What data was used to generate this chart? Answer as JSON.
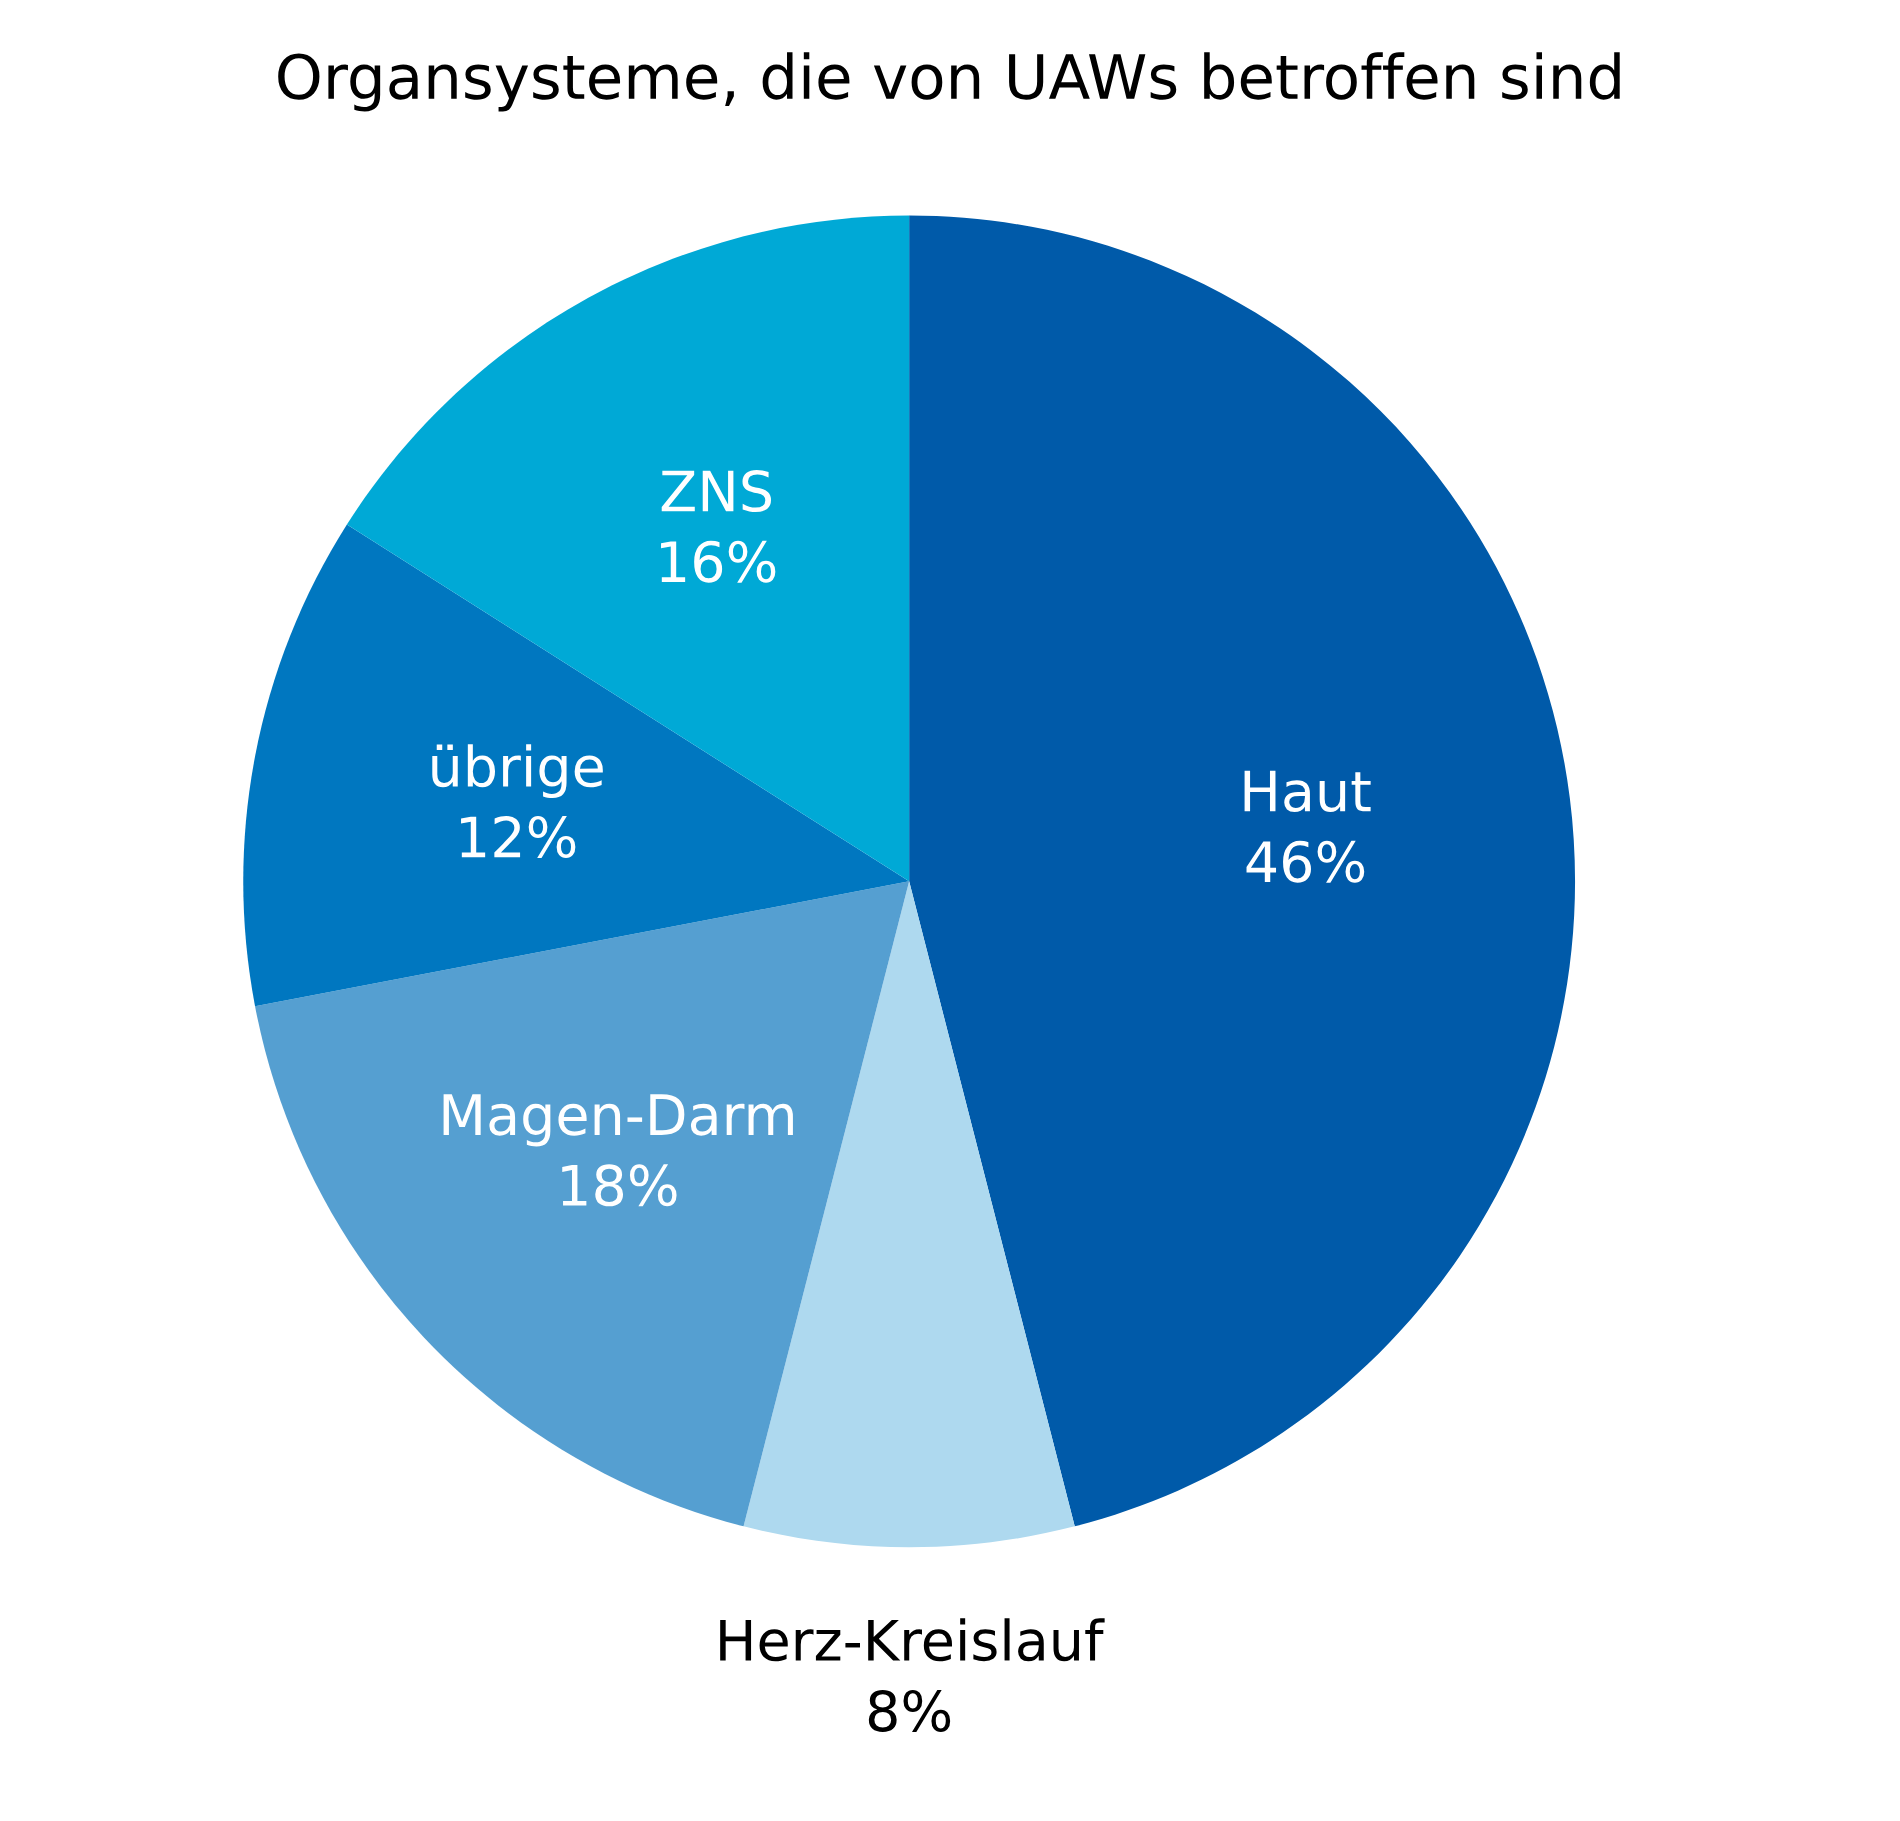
{
  "chart_data": {
    "type": "pie",
    "title": "Organsysteme, die von UAWs betroffen sind",
    "categories": [
      "Haut",
      "Herz-Kreislauf",
      "Magen-Darm",
      "übrige",
      "ZNS"
    ],
    "values": [
      46,
      8,
      18,
      12,
      16
    ],
    "value_labels": [
      "46%",
      "8%",
      "18%",
      "12%",
      "16%"
    ],
    "colors": [
      "#005aa9",
      "#aed9ef",
      "#559fd1",
      "#0077c0",
      "#00a9d6"
    ]
  }
}
